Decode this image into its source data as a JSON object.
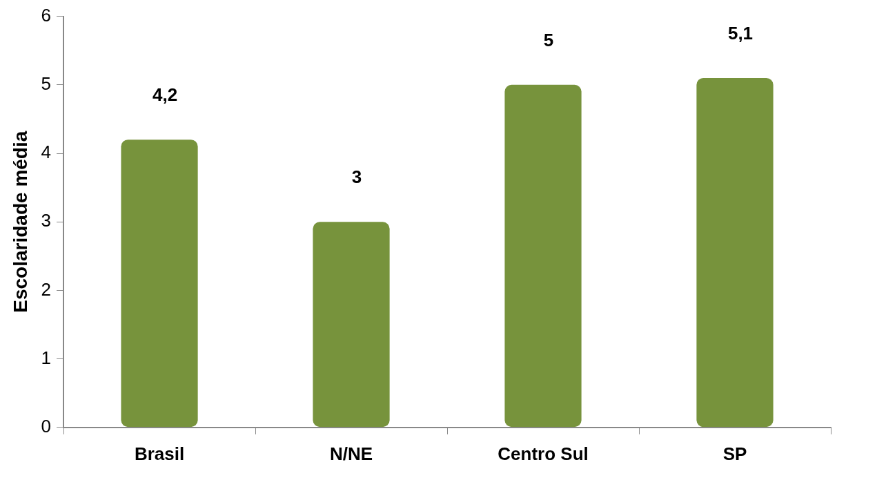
{
  "chart_data": {
    "type": "bar",
    "ylabel": "Escolaridade média",
    "categories": [
      "Brasil",
      "N/NE",
      "Centro Sul",
      "SP"
    ],
    "values": [
      4.2,
      3,
      5,
      5.1
    ],
    "value_labels": [
      "4,2",
      "3",
      "5",
      "5,1"
    ],
    "color": "#77933c",
    "ylim": [
      0,
      6
    ],
    "yticks": [
      0,
      1,
      2,
      3,
      4,
      5,
      6
    ],
    "grid": false,
    "legend": false
  }
}
